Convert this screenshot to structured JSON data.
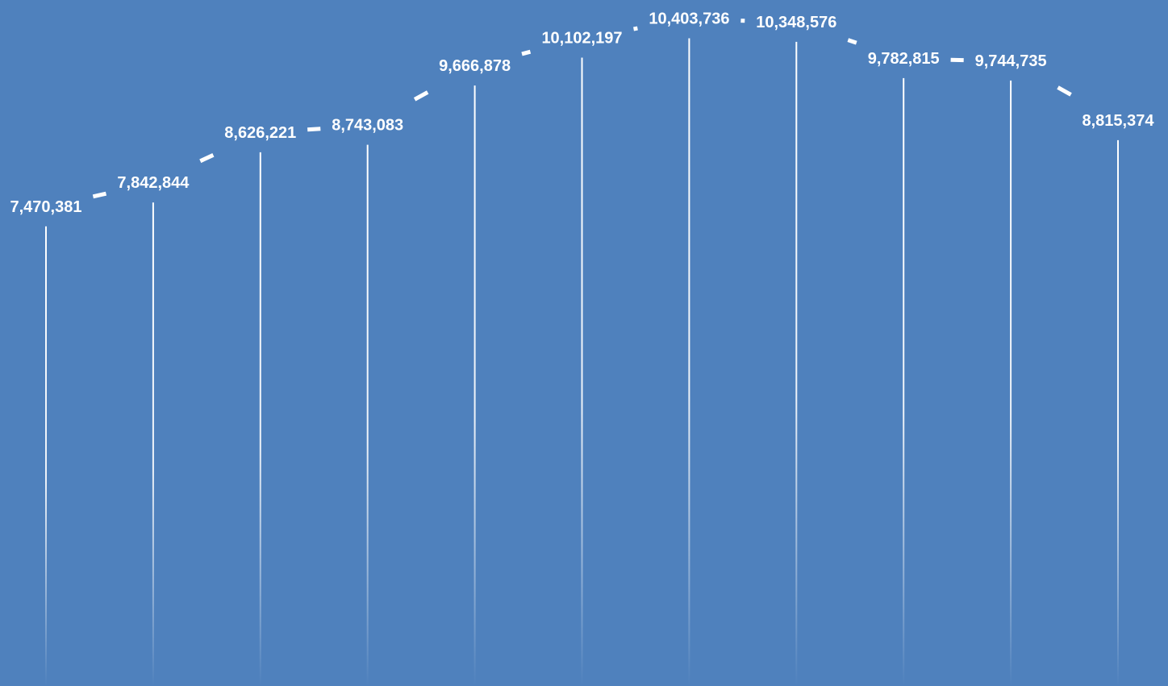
{
  "colors": {
    "background": "#4f81bd",
    "line": "#ffffff",
    "drop_line": "#ffffff",
    "label": "#ffffff"
  },
  "chart_data": {
    "type": "line",
    "title": "",
    "xlabel": "",
    "ylabel": "",
    "categories": [
      "",
      "",
      "",
      "",
      "",
      "",
      "",
      "",
      "",
      "",
      ""
    ],
    "series": [
      {
        "values": [
          7470381,
          7842844,
          8626221,
          8743083,
          9666878,
          10102197,
          10403736,
          10348576,
          9782815,
          9744735,
          8815374
        ]
      }
    ],
    "data_labels": [
      "7,470,381",
      "7,842,844",
      "8,626,221",
      "8,743,083",
      "9,666,878",
      "10,102,197",
      "10,403,736",
      "10,348,576",
      "9,782,815",
      "9,744,735",
      "8,815,374"
    ],
    "ylim": [
      0,
      10800000
    ],
    "grid": false,
    "legend": "none",
    "drop_lines": true,
    "markers": false
  }
}
